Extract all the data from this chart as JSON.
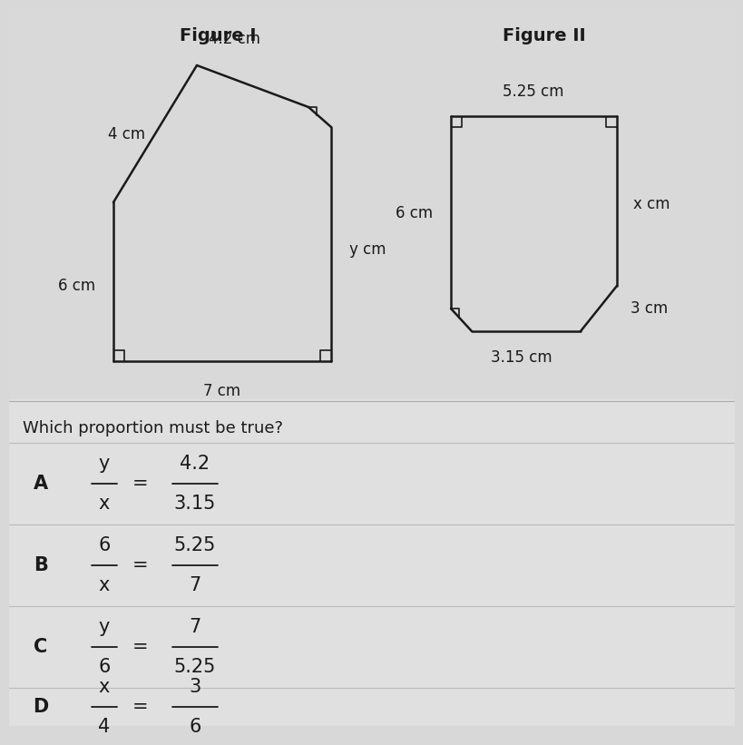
{
  "bg_color": "#d8d8d8",
  "panel_bg": "#e8e8e8",
  "fig1_title": "Figure I",
  "fig2_title": "Figure II",
  "question": "Which proportion must be true?",
  "fig1_labels": {
    "top": "4.2 cm",
    "top_left": "4 cm",
    "left": "6 cm",
    "bottom": "7 cm",
    "right": "y cm"
  },
  "fig2_labels": {
    "top": "5.25 cm",
    "left": "6 cm",
    "right": "x cm",
    "bottom_left": "3.15 cm",
    "bottom_right": "3 cm"
  },
  "options": [
    {
      "letter": "A",
      "num": "y",
      "den": "x",
      "eq_num": "4.2",
      "eq_den": "3.15"
    },
    {
      "letter": "B",
      "num": "6",
      "den": "x",
      "eq_num": "5.25",
      "eq_den": "7"
    },
    {
      "letter": "C",
      "num": "y",
      "den": "6",
      "eq_num": "7",
      "eq_den": "5.25"
    },
    {
      "letter": "D",
      "num": "x",
      "den": "4",
      "eq_num": "3",
      "eq_den": "6"
    }
  ],
  "line_color": "#1a1a1a",
  "text_color": "#1a1a1a"
}
